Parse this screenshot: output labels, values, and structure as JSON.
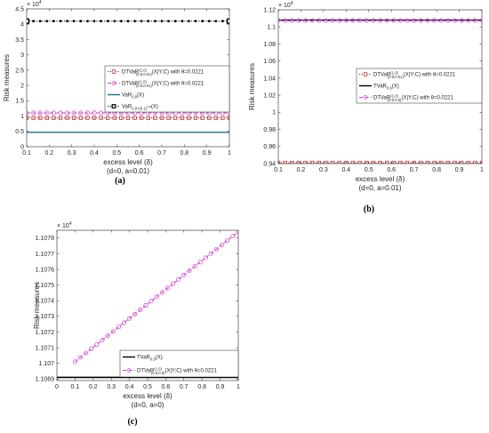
{
  "colors": {
    "dtvar_a_red": "#b22222",
    "dtvar_magenta": "#cc44cc",
    "var_blue": "#1f6f8b",
    "tvar_black": "#000000",
    "axis": "#262626"
  },
  "chart_data": [
    {
      "panel_label": "(a)",
      "type": "line",
      "xlabel": "excess level (δ)",
      "xlabel_sub": "(d=0, a=0.01)",
      "ylabel": "Risk measures",
      "exponent": "× 10",
      "exponent_power": "4",
      "xlim": [
        0.1,
        1
      ],
      "ylim": [
        0,
        4.5
      ],
      "xticks": [
        "0.1",
        "0.2",
        "0.3",
        "0.4",
        "0.5",
        "0.6",
        "0.7",
        "0.8",
        "0.9",
        "1"
      ],
      "yticks": [
        "0",
        "0.5",
        "1",
        "1.5",
        "2",
        "2.5",
        "3",
        "3.5",
        "4",
        "4.5"
      ],
      "legend_position": "right",
      "series": [
        {
          "name": "DTVaR^(1,0)_(0.9,0.01)(X|Y;C) with θ=0.0221",
          "legend_main": "DTVaR",
          "legend_sub": "(0.9,0.01)",
          "legend_sup": "(1,0)",
          "legend_tail": "(X|Y;C) with θ=0.0221",
          "x": [
            0.1,
            1
          ],
          "values": [
            0.94,
            0.94
          ],
          "color": "#b22222",
          "style": "dotted",
          "marker": "square"
        },
        {
          "name": "DTVaR^(1,0)_(0.9,0.01)(X|Y;C) with θ=0.0221",
          "legend_main": "DTVaR",
          "legend_sub": "(0.9,0.01)",
          "legend_sup": "(1,0)",
          "legend_tail": "(X|Y;C) with θ=0.0221",
          "x": [
            0.1,
            1
          ],
          "values": [
            1.105,
            1.105
          ],
          "color": "#cc44cc",
          "style": "dashed",
          "marker": "circle"
        },
        {
          "name": "VaR_0.9(X)",
          "legend_main": "VaR",
          "legend_sub": "0.9",
          "legend_sup": "",
          "legend_tail": "(X)",
          "x": [
            0.1,
            1
          ],
          "values": [
            0.47,
            0.47
          ],
          "color": "#1f6f8b",
          "style": "solid",
          "marker": "none"
        },
        {
          "name": "VaR_0.9+(0.1)^(1-a)(X)",
          "legend_main": "VaR",
          "legend_sub": "0.9+(0.1)",
          "legend_sup": "",
          "legend_tail": "(X)",
          "legend_subsup": "1-a",
          "x": [
            0.1,
            1
          ],
          "values": [
            4.1,
            4.1
          ],
          "color": "#000000",
          "style": "dotted",
          "marker": "square"
        }
      ]
    },
    {
      "panel_label": "(b)",
      "type": "line",
      "xlabel": "excess level (δ)",
      "xlabel_sub": "(d=0, a=0.01)",
      "ylabel": "Risk measures",
      "exponent": "× 10",
      "exponent_power": "4",
      "xlim": [
        0.1,
        1
      ],
      "ylim": [
        0.94,
        1.12
      ],
      "xticks": [
        "0.1",
        "0.2",
        "0.3",
        "0.4",
        "0.5",
        "0.6",
        "0.7",
        "0.8",
        "0.9",
        "1"
      ],
      "yticks": [
        "0.94",
        "0.96",
        "0.98",
        "1",
        "1.02",
        "1.04",
        "1.06",
        "1.08",
        "1.1",
        "1.12"
      ],
      "legend_position": "right",
      "series": [
        {
          "name": "DTVaR^(1,0)_(0.9,0.01)(X|Y;C) with θ=0.0221",
          "legend_main": "DTVaR",
          "legend_sub": "(0.9,0.01)",
          "legend_sup": "(1,0)",
          "legend_tail": "(X|Y;C) with θ=0.0221",
          "x": [
            0.1,
            1
          ],
          "values": [
            0.941,
            0.941
          ],
          "color": "#b22222",
          "style": "dotted",
          "marker": "square"
        },
        {
          "name": "TVaR_0.9(X)",
          "legend_main": "TVaR",
          "legend_sub": "0.9",
          "legend_sup": "",
          "legend_tail": "(X)",
          "x": [
            0.1,
            1
          ],
          "values": [
            1.1078,
            1.1078
          ],
          "color": "#000000",
          "style": "solid",
          "marker": "none"
        },
        {
          "name": "DTVaR^(1,0)_(0.9,0.0)(X|Y;C) with θ=0.0221",
          "legend_main": "DTVaR",
          "legend_sub": "(0.9,0.0)",
          "legend_sup": "(1,0)",
          "legend_tail": "(X|Y;C) with θ=0.0221",
          "x": [
            0.1,
            1
          ],
          "values": [
            1.1075,
            1.1075
          ],
          "color": "#cc44cc",
          "style": "dashed",
          "marker": "circle"
        }
      ]
    },
    {
      "panel_label": "(c)",
      "type": "line",
      "xlabel": "excess level (δ)",
      "xlabel_sub": "(d=0, a=0)",
      "ylabel": "Risk measures",
      "exponent": "× 10",
      "exponent_power": "4",
      "xlim": [
        0,
        1
      ],
      "ylim": [
        1.10689,
        1.10785
      ],
      "xticks": [
        "0",
        "0.1",
        "0.2",
        "0.3",
        "0.4",
        "0.5",
        "0.6",
        "0.7",
        "0.8",
        "0.9",
        "1"
      ],
      "yticks": [
        "1.1069",
        "1.107",
        "1.1071",
        "1.1072",
        "1.1073",
        "1.1074",
        "1.1075",
        "1.1076",
        "1.1077",
        "1.1078"
      ],
      "legend_position": "bottom-right",
      "series": [
        {
          "name": "TVaR_0.9(X)",
          "legend_main": "TVaR",
          "legend_sub": "0.9",
          "legend_sup": "",
          "legend_tail": "(X)",
          "x": [
            0,
            1
          ],
          "values": [
            1.10691,
            1.10691
          ],
          "color": "#000000",
          "style": "solid",
          "marker": "none"
        },
        {
          "name": "DTVaR^(1,0)_(0.9,0.0)(X|Y;C) with θ=0.0221",
          "legend_main": "DTVaR",
          "legend_sub": "(0.9,0.0)",
          "legend_sup": "(1,0)",
          "legend_tail": "(X|Y;C) with θ=0.0221",
          "x": [
            0.1,
            1
          ],
          "values": [
            1.10701,
            1.10784
          ],
          "color": "#cc44cc",
          "style": "dashed",
          "marker": "circle"
        }
      ]
    }
  ]
}
